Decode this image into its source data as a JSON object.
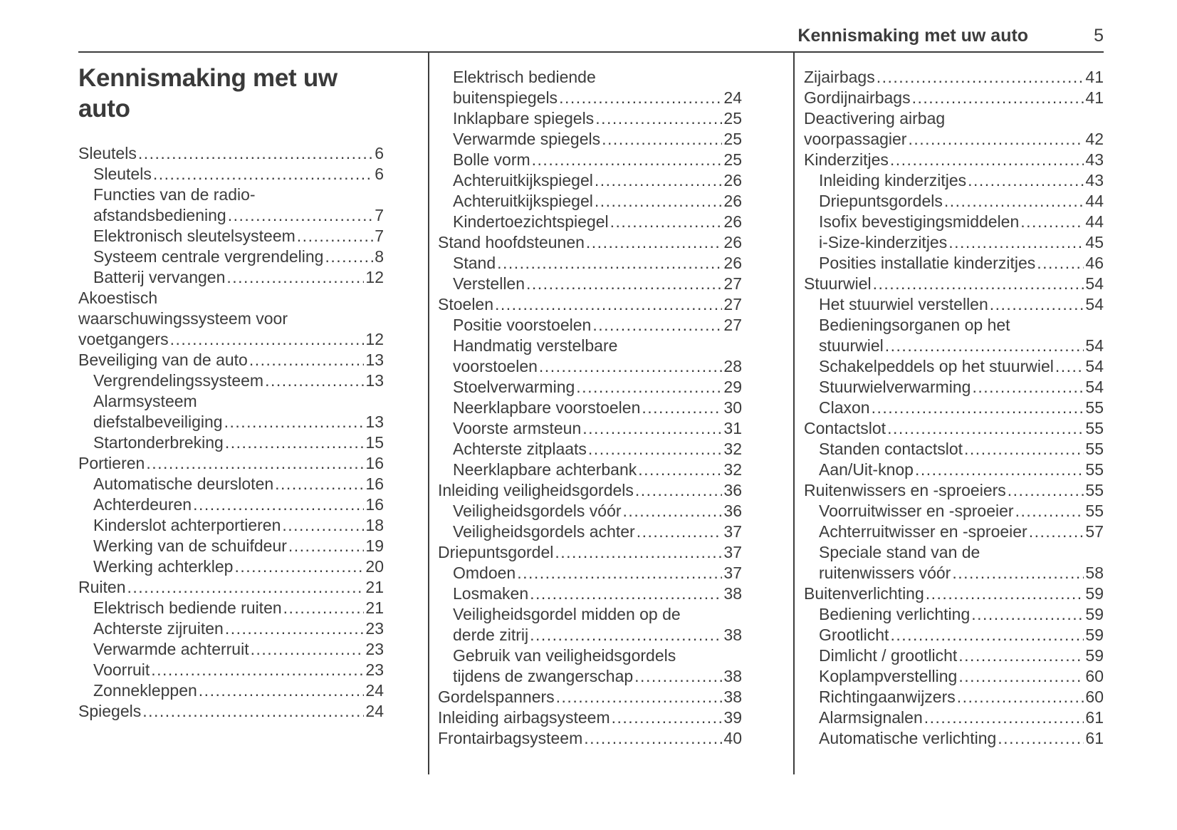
{
  "page_header": {
    "chapter_title": "Kennismaking met uw auto",
    "page_number": "5"
  },
  "section_title": "Kennismaking met uw auto",
  "toc": {
    "columns": [
      [
        {
          "level": 0,
          "lines": [
            "Sleutels"
          ],
          "page": "6"
        },
        {
          "level": 1,
          "lines": [
            "Sleutels"
          ],
          "page": "6"
        },
        {
          "level": 1,
          "lines": [
            "Functies van de radio-",
            "afstandsbediening"
          ],
          "page": "7"
        },
        {
          "level": 1,
          "lines": [
            "Elektronisch sleutelsysteem"
          ],
          "page": "7"
        },
        {
          "level": 1,
          "lines": [
            "Systeem centrale vergrendeling"
          ],
          "page": "8"
        },
        {
          "level": 1,
          "lines": [
            "Batterij vervangen"
          ],
          "page": "12"
        },
        {
          "level": 0,
          "lines": [
            "Akoestisch",
            "waarschuwingssysteem voor",
            "voetgangers"
          ],
          "page": "12"
        },
        {
          "level": 0,
          "lines": [
            "Beveiliging van de auto"
          ],
          "page": "13"
        },
        {
          "level": 1,
          "lines": [
            "Vergrendelingssysteem"
          ],
          "page": "13"
        },
        {
          "level": 1,
          "lines": [
            "Alarmsysteem",
            "diefstalbeveiliging"
          ],
          "page": "13"
        },
        {
          "level": 1,
          "lines": [
            "Startonderbreking"
          ],
          "page": "15"
        },
        {
          "level": 0,
          "lines": [
            "Portieren"
          ],
          "page": "16"
        },
        {
          "level": 1,
          "lines": [
            "Automatische deursloten"
          ],
          "page": "16"
        },
        {
          "level": 1,
          "lines": [
            "Achterdeuren"
          ],
          "page": "16"
        },
        {
          "level": 1,
          "lines": [
            "Kinderslot achterportieren"
          ],
          "page": "18"
        },
        {
          "level": 1,
          "lines": [
            "Werking van de schuifdeur"
          ],
          "page": "19"
        },
        {
          "level": 1,
          "lines": [
            "Werking achterklep"
          ],
          "page": "20"
        },
        {
          "level": 0,
          "lines": [
            "Ruiten"
          ],
          "page": "21"
        },
        {
          "level": 1,
          "lines": [
            "Elektrisch bediende ruiten"
          ],
          "page": "21"
        },
        {
          "level": 1,
          "lines": [
            "Achterste zijruiten"
          ],
          "page": "23"
        },
        {
          "level": 1,
          "lines": [
            "Verwarmde achterruit"
          ],
          "page": "23"
        },
        {
          "level": 1,
          "lines": [
            "Voorruit"
          ],
          "page": "23"
        },
        {
          "level": 1,
          "lines": [
            "Zonnekleppen"
          ],
          "page": "24"
        },
        {
          "level": 0,
          "lines": [
            "Spiegels"
          ],
          "page": "24"
        }
      ],
      [
        {
          "level": 1,
          "lines": [
            "Elektrisch bediende",
            "buitenspiegels"
          ],
          "page": "24"
        },
        {
          "level": 1,
          "lines": [
            "Inklapbare spiegels"
          ],
          "page": "25"
        },
        {
          "level": 1,
          "lines": [
            "Verwarmde spiegels"
          ],
          "page": "25"
        },
        {
          "level": 1,
          "lines": [
            "Bolle vorm"
          ],
          "page": "25"
        },
        {
          "level": 1,
          "lines": [
            "Achteruitkijkspiegel"
          ],
          "page": "26"
        },
        {
          "level": 1,
          "lines": [
            "Achteruitkijkspiegel"
          ],
          "page": "26"
        },
        {
          "level": 1,
          "lines": [
            "Kindertoezichtspiegel"
          ],
          "page": "26"
        },
        {
          "level": 0,
          "lines": [
            "Stand hoofdsteunen"
          ],
          "page": "26"
        },
        {
          "level": 1,
          "lines": [
            "Stand"
          ],
          "page": "26"
        },
        {
          "level": 1,
          "lines": [
            "Verstellen"
          ],
          "page": "27"
        },
        {
          "level": 0,
          "lines": [
            "Stoelen"
          ],
          "page": "27"
        },
        {
          "level": 1,
          "lines": [
            "Positie voorstoelen"
          ],
          "page": "27"
        },
        {
          "level": 1,
          "lines": [
            "Handmatig verstelbare",
            "voorstoelen"
          ],
          "page": "28"
        },
        {
          "level": 1,
          "lines": [
            "Stoelverwarming"
          ],
          "page": "29"
        },
        {
          "level": 1,
          "lines": [
            "Neerklapbare voorstoelen"
          ],
          "page": "30"
        },
        {
          "level": 1,
          "lines": [
            "Voorste armsteun"
          ],
          "page": "31"
        },
        {
          "level": 1,
          "lines": [
            "Achterste zitplaats"
          ],
          "page": "32"
        },
        {
          "level": 1,
          "lines": [
            "Neerklapbare achterbank"
          ],
          "page": "32"
        },
        {
          "level": 0,
          "lines": [
            "Inleiding veiligheidsgordels"
          ],
          "page": "36"
        },
        {
          "level": 1,
          "lines": [
            "Veiligheidsgordels vóór"
          ],
          "page": "36"
        },
        {
          "level": 1,
          "lines": [
            "Veiligheidsgordels achter"
          ],
          "page": "37"
        },
        {
          "level": 0,
          "lines": [
            "Driepuntsgordel"
          ],
          "page": "37"
        },
        {
          "level": 1,
          "lines": [
            "Omdoen"
          ],
          "page": "37"
        },
        {
          "level": 1,
          "lines": [
            "Losmaken"
          ],
          "page": "38"
        },
        {
          "level": 1,
          "lines": [
            "Veiligheidsgordel midden op de",
            "derde zitrij"
          ],
          "page": "38"
        },
        {
          "level": 1,
          "lines": [
            "Gebruik van veiligheidsgordels",
            "tijdens de zwangerschap"
          ],
          "page": "38"
        },
        {
          "level": 0,
          "lines": [
            "Gordelspanners"
          ],
          "page": "38"
        },
        {
          "level": 0,
          "lines": [
            "Inleiding airbagsysteem"
          ],
          "page": "39"
        },
        {
          "level": 0,
          "lines": [
            "Frontairbagsysteem"
          ],
          "page": "40"
        }
      ],
      [
        {
          "level": 0,
          "lines": [
            "Zijairbags"
          ],
          "page": "41"
        },
        {
          "level": 0,
          "lines": [
            "Gordijnairbags"
          ],
          "page": "41"
        },
        {
          "level": 0,
          "lines": [
            "Deactivering airbag",
            "voorpassagier"
          ],
          "page": "42"
        },
        {
          "level": 0,
          "lines": [
            "Kinderzitjes"
          ],
          "page": "43"
        },
        {
          "level": 1,
          "lines": [
            "Inleiding kinderzitjes"
          ],
          "page": "43"
        },
        {
          "level": 1,
          "lines": [
            "Driepuntsgordels"
          ],
          "page": "44"
        },
        {
          "level": 1,
          "lines": [
            "Isofix bevestigingsmiddelen"
          ],
          "page": "44"
        },
        {
          "level": 1,
          "lines": [
            "i-Size-kinderzitjes"
          ],
          "page": "45"
        },
        {
          "level": 1,
          "lines": [
            "Posities installatie kinderzitjes"
          ],
          "page": "46"
        },
        {
          "level": 0,
          "lines": [
            "Stuurwiel"
          ],
          "page": "54"
        },
        {
          "level": 1,
          "lines": [
            "Het stuurwiel verstellen"
          ],
          "page": "54"
        },
        {
          "level": 1,
          "lines": [
            "Bedieningsorganen op het",
            "stuurwiel"
          ],
          "page": "54"
        },
        {
          "level": 1,
          "lines": [
            "Schakelpeddels op het stuurwiel"
          ],
          "page": "54"
        },
        {
          "level": 1,
          "lines": [
            "Stuurwielverwarming"
          ],
          "page": "54"
        },
        {
          "level": 1,
          "lines": [
            "Claxon"
          ],
          "page": "55"
        },
        {
          "level": 0,
          "lines": [
            "Contactslot"
          ],
          "page": "55"
        },
        {
          "level": 1,
          "lines": [
            "Standen contactslot"
          ],
          "page": "55"
        },
        {
          "level": 1,
          "lines": [
            "Aan/Uit-knop"
          ],
          "page": "55"
        },
        {
          "level": 0,
          "lines": [
            "Ruitenwissers en -sproeiers"
          ],
          "page": "55"
        },
        {
          "level": 1,
          "lines": [
            "Voorruitwisser en -sproeier"
          ],
          "page": "55"
        },
        {
          "level": 1,
          "lines": [
            "Achterruitwisser en -sproeier"
          ],
          "page": "57"
        },
        {
          "level": 1,
          "lines": [
            "Speciale stand van de",
            "ruitenwissers vóór"
          ],
          "page": "58"
        },
        {
          "level": 0,
          "lines": [
            "Buitenverlichting"
          ],
          "page": "59"
        },
        {
          "level": 1,
          "lines": [
            "Bediening verlichting"
          ],
          "page": "59"
        },
        {
          "level": 1,
          "lines": [
            "Grootlicht"
          ],
          "page": "59"
        },
        {
          "level": 1,
          "lines": [
            "Dimlicht / grootlicht"
          ],
          "page": "59"
        },
        {
          "level": 1,
          "lines": [
            "Koplampverstelling"
          ],
          "page": "60"
        },
        {
          "level": 1,
          "lines": [
            "Richtingaanwijzers"
          ],
          "page": "60"
        },
        {
          "level": 1,
          "lines": [
            "Alarmsignalen"
          ],
          "page": "61"
        },
        {
          "level": 1,
          "lines": [
            "Automatische verlichting"
          ],
          "page": "61"
        }
      ]
    ]
  }
}
